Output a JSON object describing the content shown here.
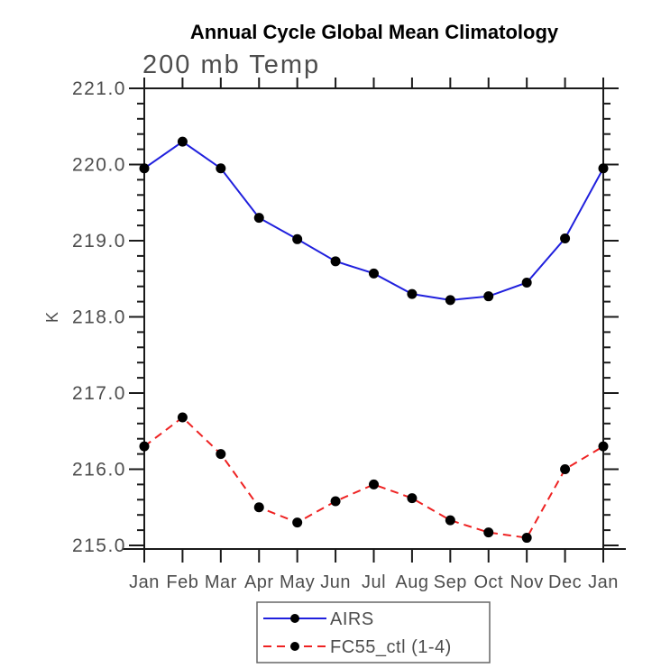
{
  "chart_data": {
    "type": "line",
    "title": "Annual Cycle Global Mean Climatology",
    "subtitle": "200 mb Temp",
    "ylabel": "K",
    "xlabel": "",
    "categories": [
      "Jan",
      "Feb",
      "Mar",
      "Apr",
      "May",
      "Jun",
      "Jul",
      "Aug",
      "Sep",
      "Oct",
      "Nov",
      "Dec",
      "Jan"
    ],
    "ylim": [
      215.0,
      221.0
    ],
    "ytick_values": [
      221.0,
      220.0,
      219.0,
      218.0,
      217.0,
      216.0,
      215.0
    ],
    "ytick_labels": [
      "221.0",
      "220.0",
      "219.0",
      "218.0",
      "217.0",
      "216.0",
      "215.0"
    ],
    "yminor_step": 0.2,
    "grid": false,
    "legend_position": "bottom-center",
    "series": [
      {
        "name": "AIRS",
        "color": "#2020dd",
        "line_style": "solid",
        "marker": "filled-circle",
        "marker_color": "#000000",
        "values": [
          219.95,
          220.3,
          219.95,
          219.3,
          219.02,
          218.73,
          218.57,
          218.3,
          218.22,
          218.27,
          218.45,
          219.03,
          219.95
        ]
      },
      {
        "name": "FC55_ctl (1-4)",
        "color": "#ee2222",
        "line_style": "dashed",
        "marker": "filled-circle",
        "marker_color": "#000000",
        "values": [
          216.3,
          216.68,
          216.2,
          215.5,
          215.3,
          215.58,
          215.8,
          215.62,
          215.33,
          215.17,
          215.1,
          216.0,
          216.3
        ]
      }
    ],
    "colors": {
      "axis": "#1a1a1a",
      "label_text": "#4d4d4d",
      "title_text": "#000000",
      "background": "#ffffff"
    }
  }
}
